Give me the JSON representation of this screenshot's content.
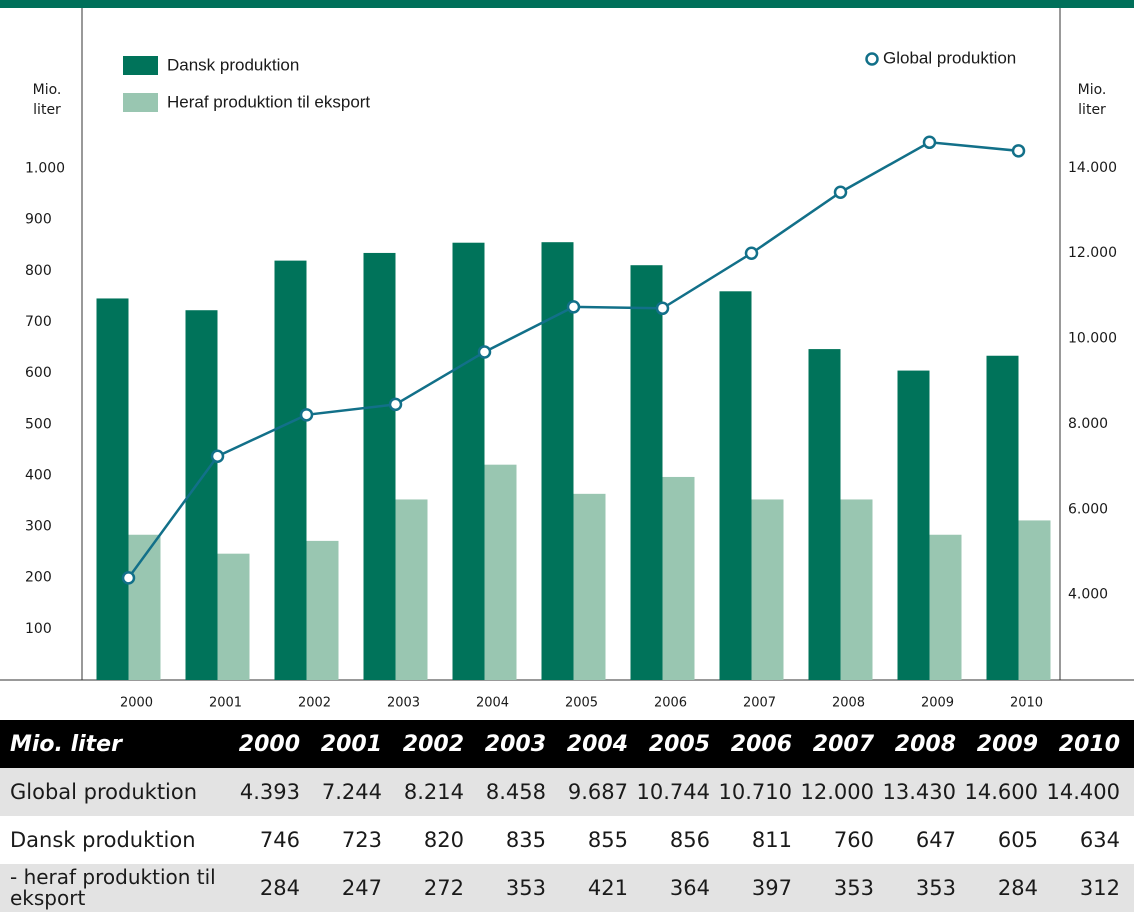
{
  "chart_data": {
    "type": "bar",
    "categories": [
      "2000",
      "2001",
      "2002",
      "2003",
      "2004",
      "2005",
      "2006",
      "2007",
      "2008",
      "2009",
      "2010"
    ],
    "y_label": "Mio. liter",
    "y2_label": "Mio. liter",
    "ylim": [
      0,
      1310
    ],
    "yticks": [
      100,
      200,
      300,
      400,
      500,
      600,
      700,
      800,
      900,
      {
        "value": 1000,
        "label": "1.000"
      }
    ],
    "y2lim": [
      2000,
      17700
    ],
    "y2ticks": [
      {
        "value": 4000,
        "label": "4.000"
      },
      {
        "value": 6000,
        "label": "6.000"
      },
      {
        "value": 8000,
        "label": "8.000"
      },
      {
        "value": 10000,
        "label": "10.000"
      },
      {
        "value": 12000,
        "label": "12.000"
      },
      {
        "value": 14000,
        "label": "14.000"
      }
    ],
    "series": [
      {
        "name": "Dansk produktion",
        "type": "bar",
        "color": "#00735a",
        "values": [
          746,
          723,
          820,
          835,
          855,
          856,
          811,
          760,
          647,
          605,
          634
        ]
      },
      {
        "name": "Heraf produktion til eksport",
        "type": "bar",
        "color": "#99c6b1",
        "values": [
          284,
          247,
          272,
          353,
          421,
          364,
          397,
          353,
          353,
          284,
          312
        ]
      },
      {
        "name": "Global produktion",
        "type": "line",
        "axis": "y2",
        "color": "#127089",
        "values": [
          4393,
          7244,
          8214,
          8458,
          9687,
          10744,
          10710,
          12000,
          13430,
          14600,
          14400
        ],
        "value_labels": [
          "4.393",
          "7.244",
          "8.214",
          "8.458",
          "9.687",
          "10.744",
          "10.710",
          "12.000",
          "13.430",
          "14.600",
          "14.400"
        ]
      }
    ]
  },
  "table": {
    "header": "Mio. liter",
    "export_label": "- heraf produktion til eksport"
  }
}
